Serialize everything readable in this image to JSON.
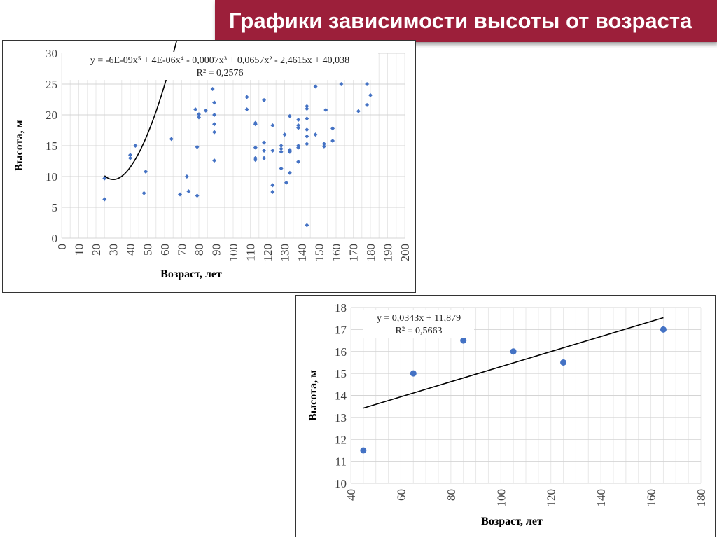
{
  "slide": {
    "title": "Графики зависимости высоты от возраста",
    "accent_color": "#9c1f3a"
  },
  "chart_data": [
    {
      "type": "scatter",
      "xlabel": "Возраст, лет",
      "ylabel": "Высота, м",
      "xlim": [
        0,
        200
      ],
      "ylim": [
        0,
        30
      ],
      "xticks": [
        0,
        10,
        20,
        30,
        40,
        50,
        60,
        70,
        80,
        90,
        100,
        110,
        120,
        130,
        140,
        150,
        160,
        170,
        180,
        190,
        200
      ],
      "yticks": [
        0,
        5,
        10,
        15,
        20,
        25,
        30
      ],
      "grid": true,
      "marker_color": "#4472c4",
      "trendline": {
        "type": "polynomial",
        "order": 5,
        "x_range": [
          25,
          194
        ],
        "equation": "y = -6E-09x⁵ + 4E-06x⁴ - 0,0007x³ + 0,0657x² - 2,4615x + 40,038",
        "r2": "R² = 0,2576"
      },
      "series": [
        {
          "points": [
            [
              25,
              6.3
            ],
            [
              25,
              9.7
            ],
            [
              40,
              13.0
            ],
            [
              40,
              13.5
            ],
            [
              43,
              15.0
            ],
            [
              48,
              7.3
            ],
            [
              49,
              10.8
            ],
            [
              64,
              16.1
            ],
            [
              69,
              7.1
            ],
            [
              73,
              10.0
            ],
            [
              74,
              7.6
            ],
            [
              78,
              20.9
            ],
            [
              79,
              14.8
            ],
            [
              79,
              6.9
            ],
            [
              80,
              19.6
            ],
            [
              80,
              20.1
            ],
            [
              84,
              20.7
            ],
            [
              88,
              24.2
            ],
            [
              89,
              22.0
            ],
            [
              89,
              20.0
            ],
            [
              89,
              18.5
            ],
            [
              89,
              17.2
            ],
            [
              89,
              12.6
            ],
            [
              108,
              22.9
            ],
            [
              108,
              20.9
            ],
            [
              113,
              18.7
            ],
            [
              113,
              18.5
            ],
            [
              113,
              14.7
            ],
            [
              113,
              13.0
            ],
            [
              113,
              12.7
            ],
            [
              118,
              22.4
            ],
            [
              118,
              15.5
            ],
            [
              118,
              14.2
            ],
            [
              118,
              13.0
            ],
            [
              123,
              18.3
            ],
            [
              123,
              14.2
            ],
            [
              123,
              8.6
            ],
            [
              123,
              7.5
            ],
            [
              128,
              15.0
            ],
            [
              128,
              14.5
            ],
            [
              128,
              14.0
            ],
            [
              128,
              11.3
            ],
            [
              130,
              16.8
            ],
            [
              131,
              9.0
            ],
            [
              133,
              19.8
            ],
            [
              133,
              14.3
            ],
            [
              133,
              14.0
            ],
            [
              133,
              10.6
            ],
            [
              138,
              19.2
            ],
            [
              138,
              18.3
            ],
            [
              138,
              17.9
            ],
            [
              138,
              15.0
            ],
            [
              138,
              14.7
            ],
            [
              138,
              12.4
            ],
            [
              143,
              21.4
            ],
            [
              143,
              21.0
            ],
            [
              143,
              19.4
            ],
            [
              143,
              17.6
            ],
            [
              143,
              16.5
            ],
            [
              143,
              15.3
            ],
            [
              143,
              2.1
            ],
            [
              148,
              24.6
            ],
            [
              148,
              16.8
            ],
            [
              153,
              15.3
            ],
            [
              153,
              14.9
            ],
            [
              154,
              20.8
            ],
            [
              158,
              17.8
            ],
            [
              158,
              15.8
            ],
            [
              163,
              25.0
            ],
            [
              173,
              20.6
            ],
            [
              178,
              25.0
            ],
            [
              178,
              21.6
            ],
            [
              180,
              23.2
            ]
          ]
        }
      ]
    },
    {
      "type": "scatter",
      "xlabel": "Возраст, лет",
      "ylabel": "Высота, м",
      "xlim": [
        40,
        180
      ],
      "ylim": [
        10,
        18
      ],
      "xticks": [
        40,
        60,
        80,
        100,
        120,
        140,
        160,
        180
      ],
      "yticks": [
        10,
        11,
        12,
        13,
        14,
        15,
        16,
        17,
        18
      ],
      "grid": true,
      "marker_color": "#4472c4",
      "trendline": {
        "type": "linear",
        "x_range": [
          45,
          165
        ],
        "slope": 0.0343,
        "intercept": 11.879,
        "equation": "y = 0,0343x + 11,879",
        "r2": "R² = 0,5663"
      },
      "series": [
        {
          "points": [
            [
              45,
              11.5
            ],
            [
              65,
              15.0
            ],
            [
              85,
              16.5
            ],
            [
              105,
              16.0
            ],
            [
              125,
              15.5
            ],
            [
              165,
              17.0
            ]
          ]
        }
      ]
    }
  ]
}
